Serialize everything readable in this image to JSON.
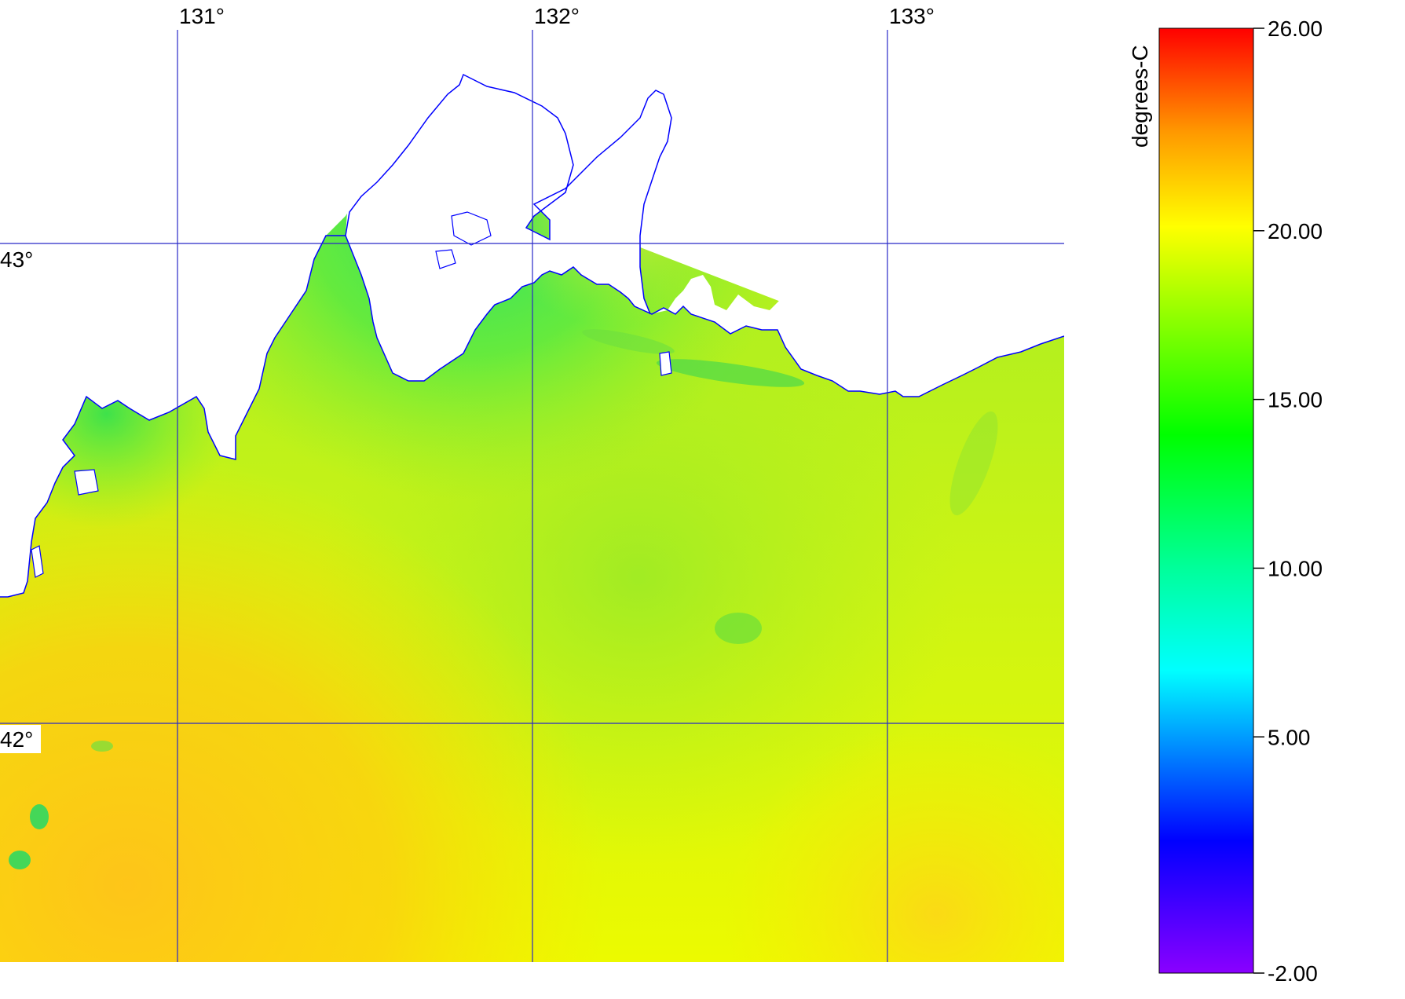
{
  "map": {
    "longitude_labels": [
      "131°",
      "132°",
      "133°"
    ],
    "latitude_labels": [
      "43°",
      "42°"
    ],
    "grid_color": "#2828c8",
    "coast_color": "#0000ff",
    "land_color": "#ffffff"
  },
  "colorbar": {
    "unit_label": "degrees-C",
    "tick_labels": [
      "26.00",
      "20.00",
      "15.00",
      "10.00",
      "5.00",
      "-2.00"
    ],
    "tick_values": [
      26,
      20,
      15,
      10,
      5,
      -2
    ],
    "min": -2,
    "max": 26,
    "colors": [
      {
        "value": -2,
        "color": "#8a00ff"
      },
      {
        "value": 2,
        "color": "#0000ff"
      },
      {
        "value": 7,
        "color": "#00ffff"
      },
      {
        "value": 10,
        "color": "#00ff99"
      },
      {
        "value": 14,
        "color": "#00ff00"
      },
      {
        "value": 20,
        "color": "#ffff00"
      },
      {
        "value": 23,
        "color": "#ff9900"
      },
      {
        "value": 26,
        "color": "#ff0000"
      }
    ]
  }
}
